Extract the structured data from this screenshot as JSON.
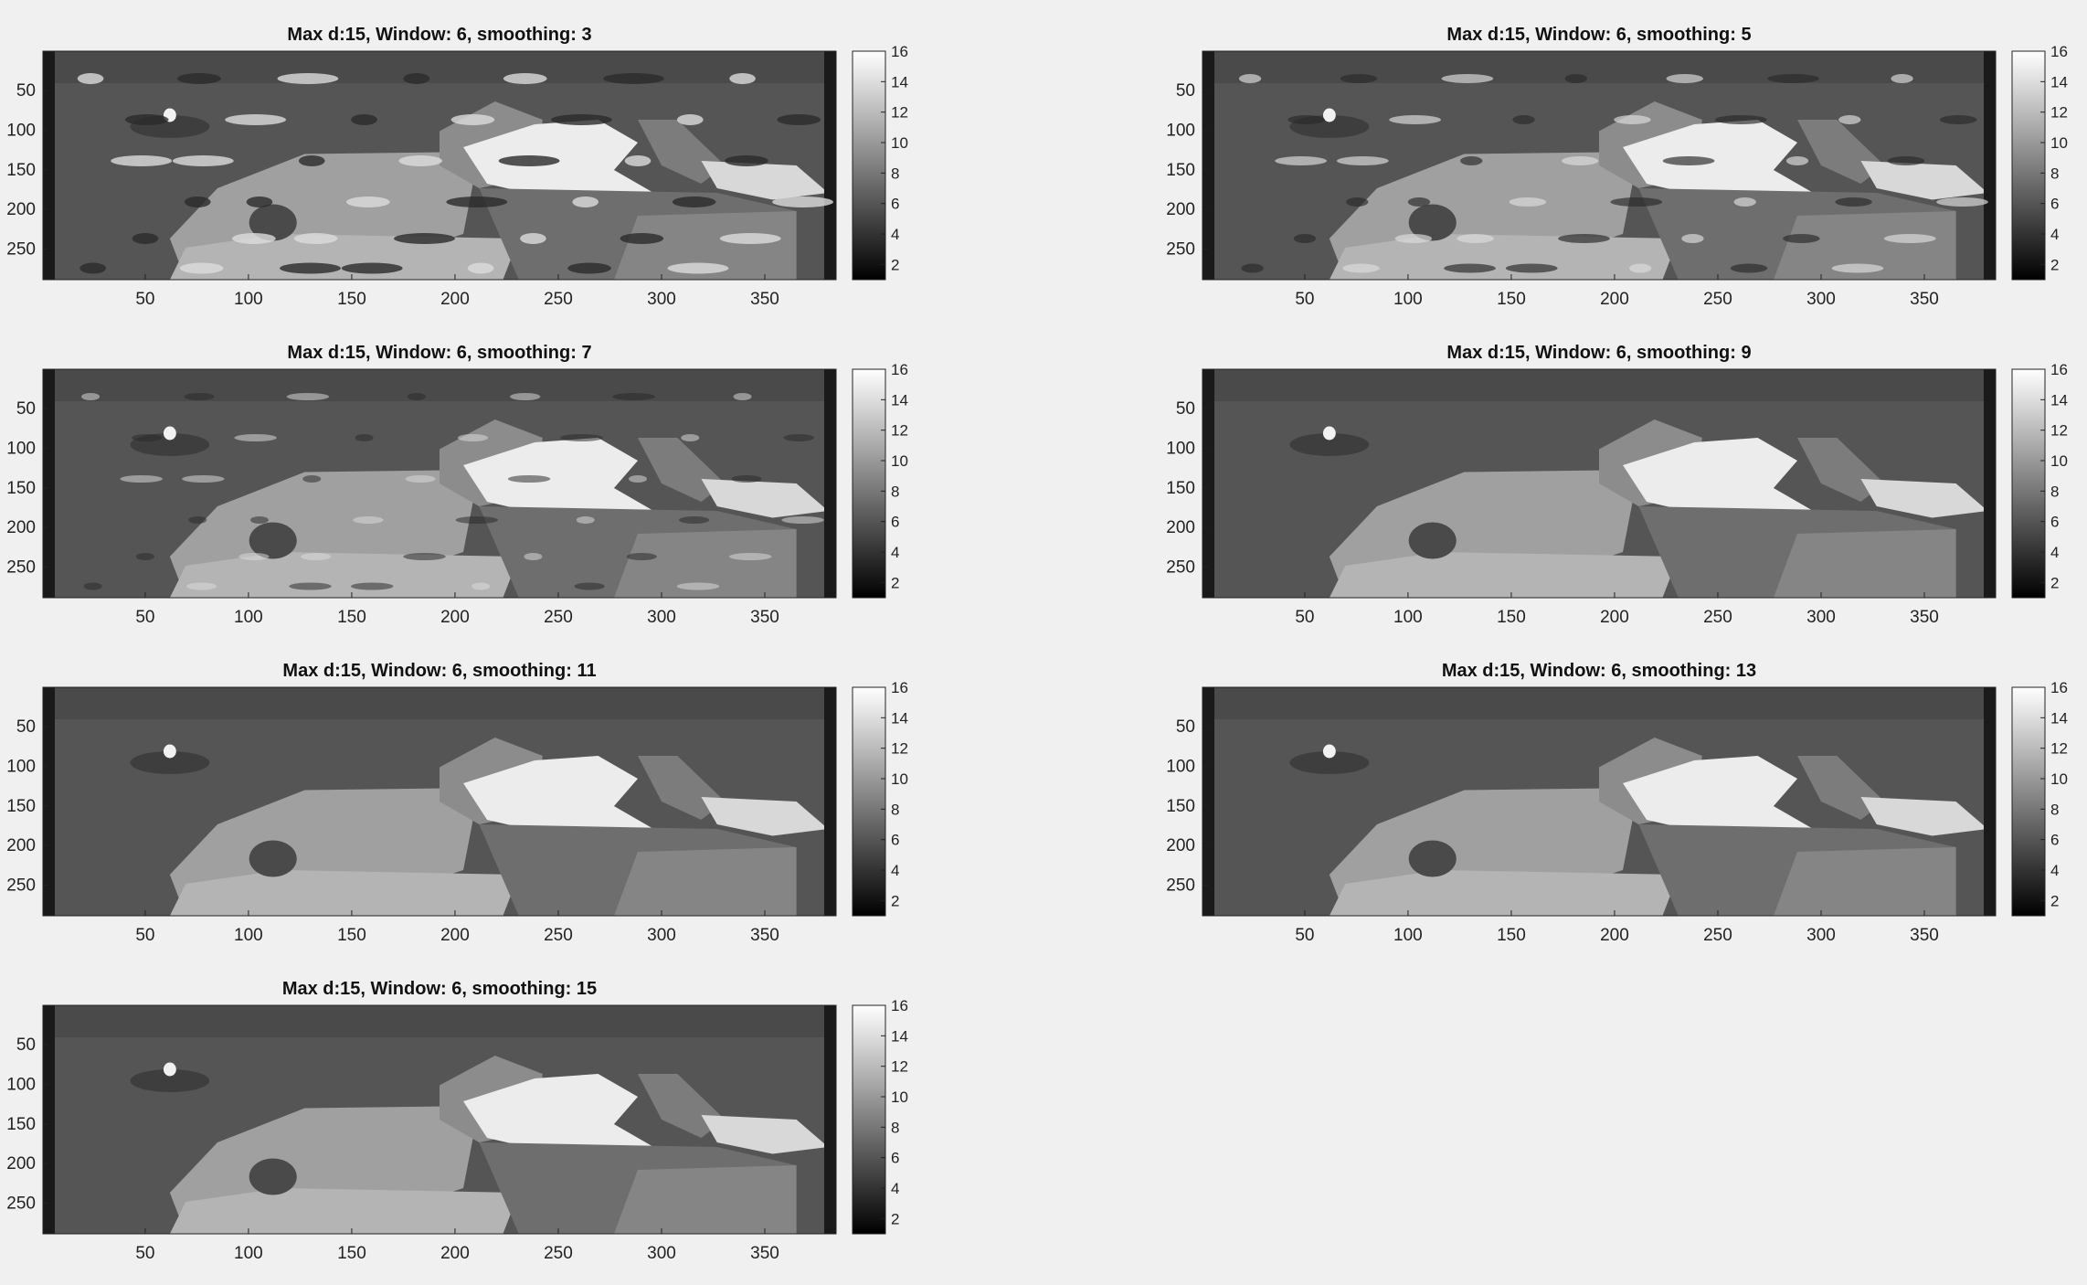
{
  "chart_data": [
    {
      "type": "heatmap",
      "title": "Max d:15, Window: 6, smoothing: 3",
      "smoothing": 3,
      "xlim": [
        0.5,
        384.5
      ],
      "ylim": [
        0.5,
        288.5
      ],
      "xticks": [
        50,
        100,
        150,
        200,
        250,
        300,
        350
      ],
      "yticks": [
        50,
        100,
        150,
        200,
        250
      ],
      "colorbar": {
        "colormap": "gray",
        "ticks": [
          2,
          4,
          6,
          8,
          10,
          12,
          14,
          16
        ],
        "range": [
          1,
          16
        ]
      }
    },
    {
      "type": "heatmap",
      "title": "Max d:15, Window: 6, smoothing: 5",
      "smoothing": 5,
      "xlim": [
        0.5,
        384.5
      ],
      "ylim": [
        0.5,
        288.5
      ],
      "xticks": [
        50,
        100,
        150,
        200,
        250,
        300,
        350
      ],
      "yticks": [
        50,
        100,
        150,
        200,
        250
      ],
      "colorbar": {
        "colormap": "gray",
        "ticks": [
          2,
          4,
          6,
          8,
          10,
          12,
          14,
          16
        ],
        "range": [
          1,
          16
        ]
      }
    },
    {
      "type": "heatmap",
      "title": "Max d:15, Window: 6, smoothing: 7",
      "smoothing": 7,
      "xlim": [
        0.5,
        384.5
      ],
      "ylim": [
        0.5,
        288.5
      ],
      "xticks": [
        50,
        100,
        150,
        200,
        250,
        300,
        350
      ],
      "yticks": [
        50,
        100,
        150,
        200,
        250
      ],
      "colorbar": {
        "colormap": "gray",
        "ticks": [
          2,
          4,
          6,
          8,
          10,
          12,
          14,
          16
        ],
        "range": [
          1,
          16
        ]
      }
    },
    {
      "type": "heatmap",
      "title": "Max d:15, Window: 6, smoothing: 9",
      "smoothing": 9,
      "xlim": [
        0.5,
        384.5
      ],
      "ylim": [
        0.5,
        288.5
      ],
      "xticks": [
        50,
        100,
        150,
        200,
        250,
        300,
        350
      ],
      "yticks": [
        50,
        100,
        150,
        200,
        250
      ],
      "colorbar": {
        "colormap": "gray",
        "ticks": [
          2,
          4,
          6,
          8,
          10,
          12,
          14,
          16
        ],
        "range": [
          1,
          16
        ]
      }
    },
    {
      "type": "heatmap",
      "title": "Max d:15, Window: 6, smoothing: 11",
      "smoothing": 11,
      "xlim": [
        0.5,
        384.5
      ],
      "ylim": [
        0.5,
        288.5
      ],
      "xticks": [
        50,
        100,
        150,
        200,
        250,
        300,
        350
      ],
      "yticks": [
        50,
        100,
        150,
        200,
        250
      ],
      "colorbar": {
        "colormap": "gray",
        "ticks": [
          2,
          4,
          6,
          8,
          10,
          12,
          14,
          16
        ],
        "range": [
          1,
          16
        ]
      }
    },
    {
      "type": "heatmap",
      "title": "Max d:15, Window: 6, smoothing: 13",
      "smoothing": 13,
      "xlim": [
        0.5,
        384.5
      ],
      "ylim": [
        0.5,
        288.5
      ],
      "xticks": [
        50,
        100,
        150,
        200,
        250,
        300,
        350
      ],
      "yticks": [
        50,
        100,
        150,
        200,
        250
      ],
      "colorbar": {
        "colormap": "gray",
        "ticks": [
          2,
          4,
          6,
          8,
          10,
          12,
          14,
          16
        ],
        "range": [
          1,
          16
        ]
      }
    },
    {
      "type": "heatmap",
      "title": "Max d:15, Window: 6, smoothing: 15",
      "smoothing": 15,
      "xlim": [
        0.5,
        384.5
      ],
      "ylim": [
        0.5,
        288.5
      ],
      "xticks": [
        50,
        100,
        150,
        200,
        250,
        300,
        350
      ],
      "yticks": [
        50,
        100,
        150,
        200,
        250
      ],
      "colorbar": {
        "colormap": "gray",
        "ticks": [
          2,
          4,
          6,
          8,
          10,
          12,
          14,
          16
        ],
        "range": [
          1,
          16
        ]
      }
    }
  ],
  "colors": {
    "background": "#f0f0f0",
    "axes": "#222222",
    "text": "#111111"
  }
}
